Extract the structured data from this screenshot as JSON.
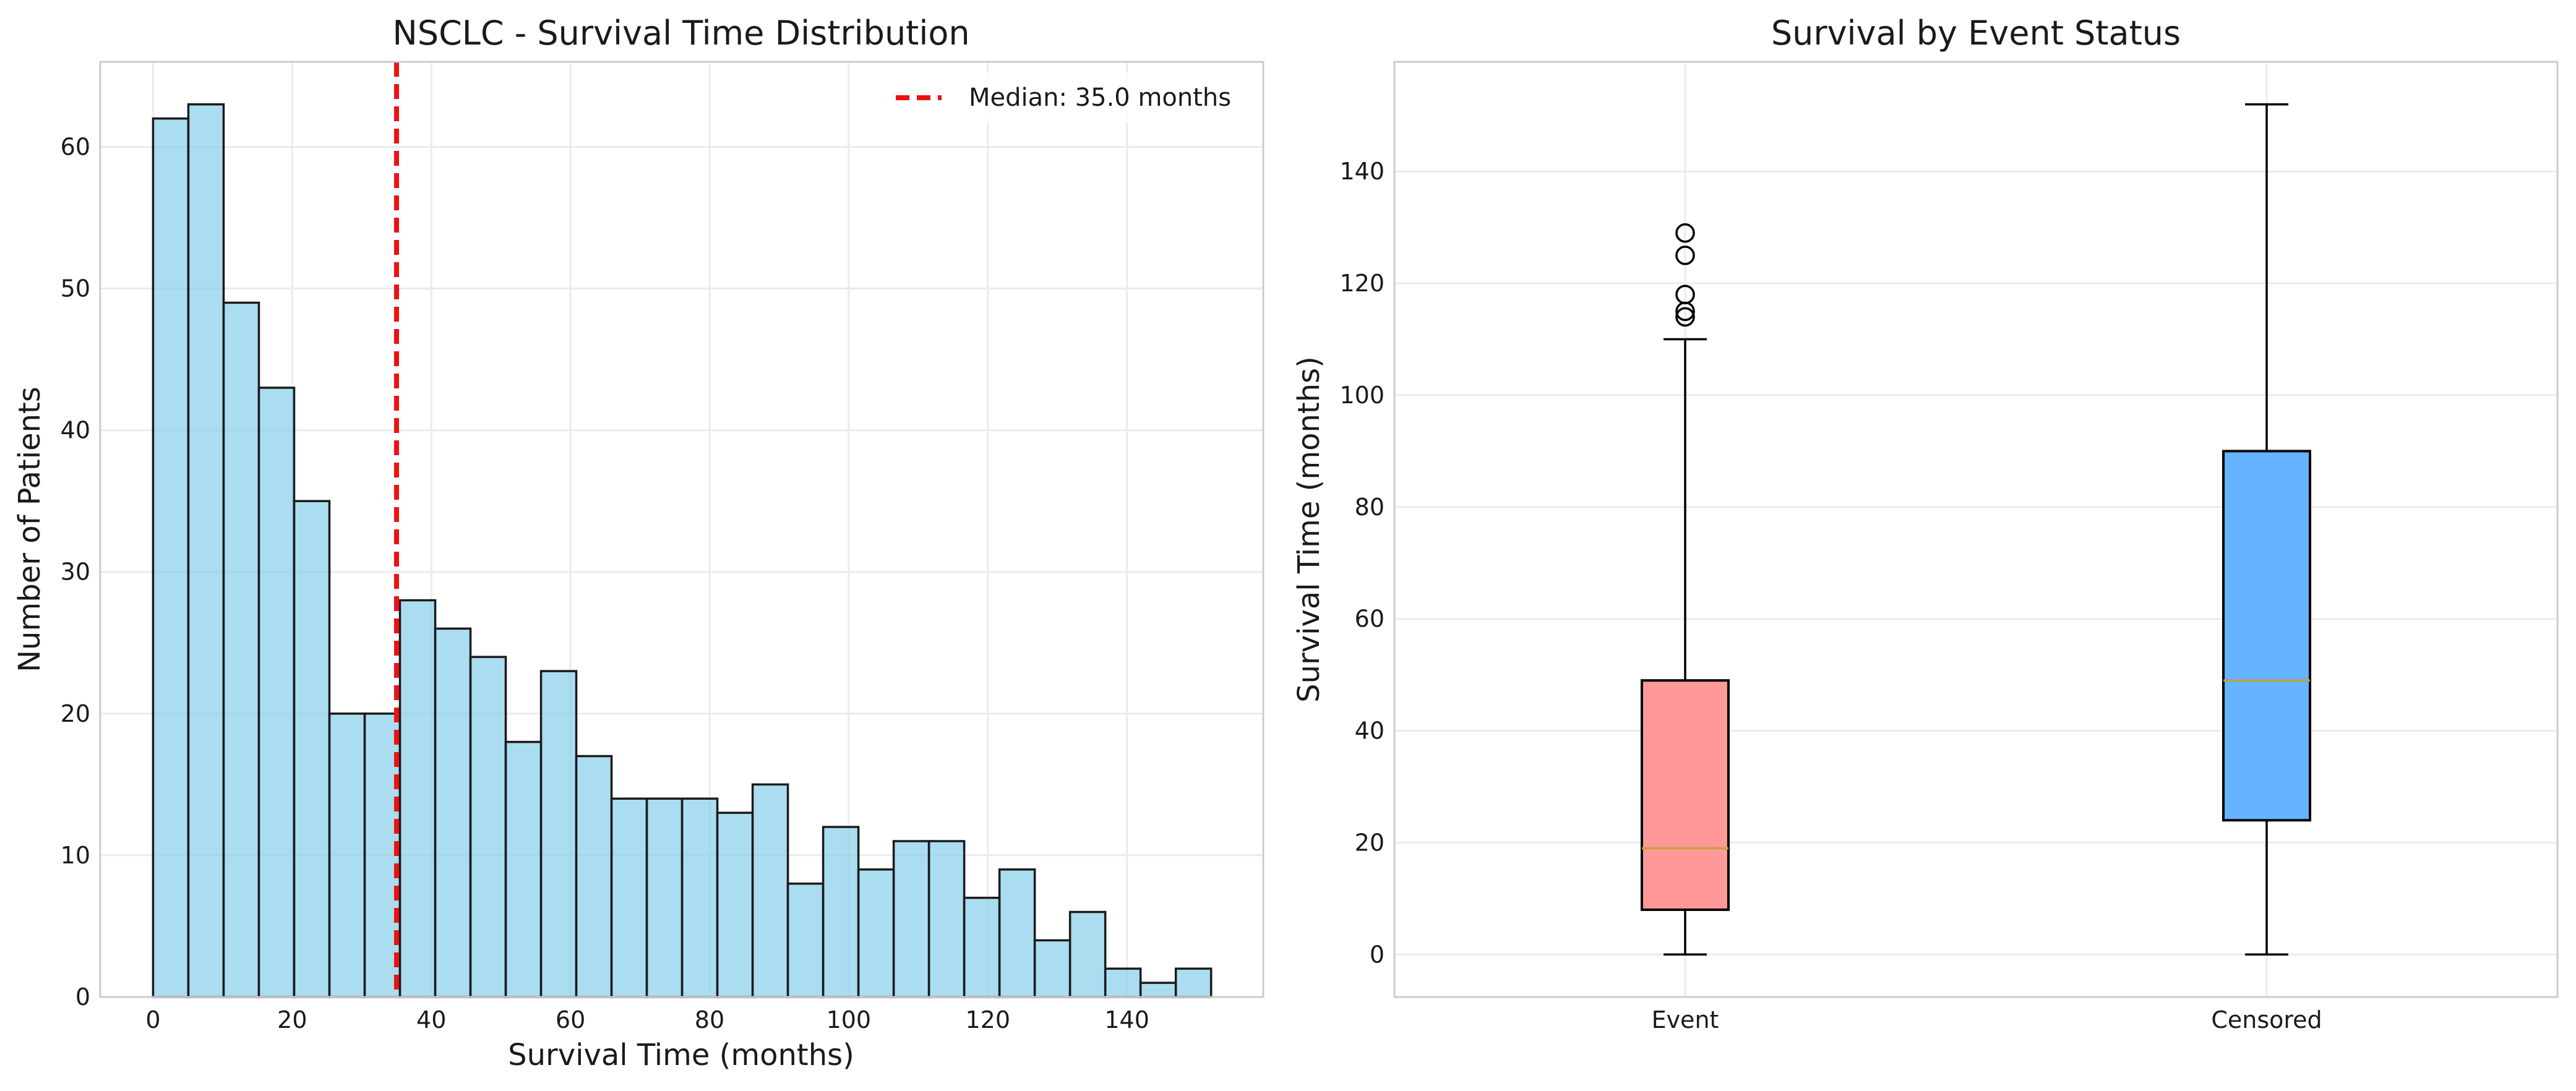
{
  "chart_data": [
    {
      "type": "bar",
      "subtype": "histogram",
      "title": "NSCLC - Survival Time Distribution",
      "xlabel": "Survival Time (months)",
      "ylabel": "Number of Patients",
      "xlim": [
        -7.6,
        159.6
      ],
      "ylim": [
        0,
        66
      ],
      "xticks": [
        "0",
        "20",
        "40",
        "60",
        "80",
        "100",
        "120",
        "140"
      ],
      "xtick_values": [
        0,
        20,
        40,
        60,
        80,
        100,
        120,
        140
      ],
      "yticks": [
        "0",
        "10",
        "20",
        "30",
        "40",
        "50",
        "60"
      ],
      "ytick_values": [
        0,
        10,
        20,
        30,
        40,
        50,
        60
      ],
      "bin_width": 5.07,
      "bin_start": 0,
      "values": [
        62,
        63,
        49,
        43,
        35,
        20,
        20,
        28,
        26,
        24,
        18,
        23,
        17,
        14,
        14,
        14,
        13,
        15,
        8,
        12,
        9,
        11,
        11,
        7,
        9,
        4,
        6,
        2,
        1,
        2
      ],
      "bar_color": "#87CEEB",
      "median_line": {
        "x": 35.0,
        "color": "#ee1111",
        "label": "Median: 35.0 months"
      },
      "legend_position": "upper right",
      "grid": true
    },
    {
      "type": "box",
      "title": "Survival by Event Status",
      "xlabel": "",
      "ylabel": "Survival Time (months)",
      "ylim": [
        -7.6,
        159.6
      ],
      "yticks": [
        "0",
        "20",
        "40",
        "60",
        "80",
        "100",
        "120",
        "140"
      ],
      "ytick_values": [
        0,
        20,
        40,
        60,
        80,
        100,
        120,
        140
      ],
      "categories": [
        "Event",
        "Censored"
      ],
      "boxes": [
        {
          "name": "Event",
          "whisker_low": 0,
          "q1": 8,
          "median": 19,
          "q3": 49,
          "whisker_high": 110,
          "outliers": [
            114,
            115,
            118,
            125,
            129
          ],
          "color": "#FF9999"
        },
        {
          "name": "Censored",
          "whisker_low": 0,
          "q1": 24,
          "median": 49,
          "q3": 90,
          "whisker_high": 152,
          "outliers": [],
          "color": "#66B3FF"
        }
      ],
      "grid": true
    }
  ]
}
